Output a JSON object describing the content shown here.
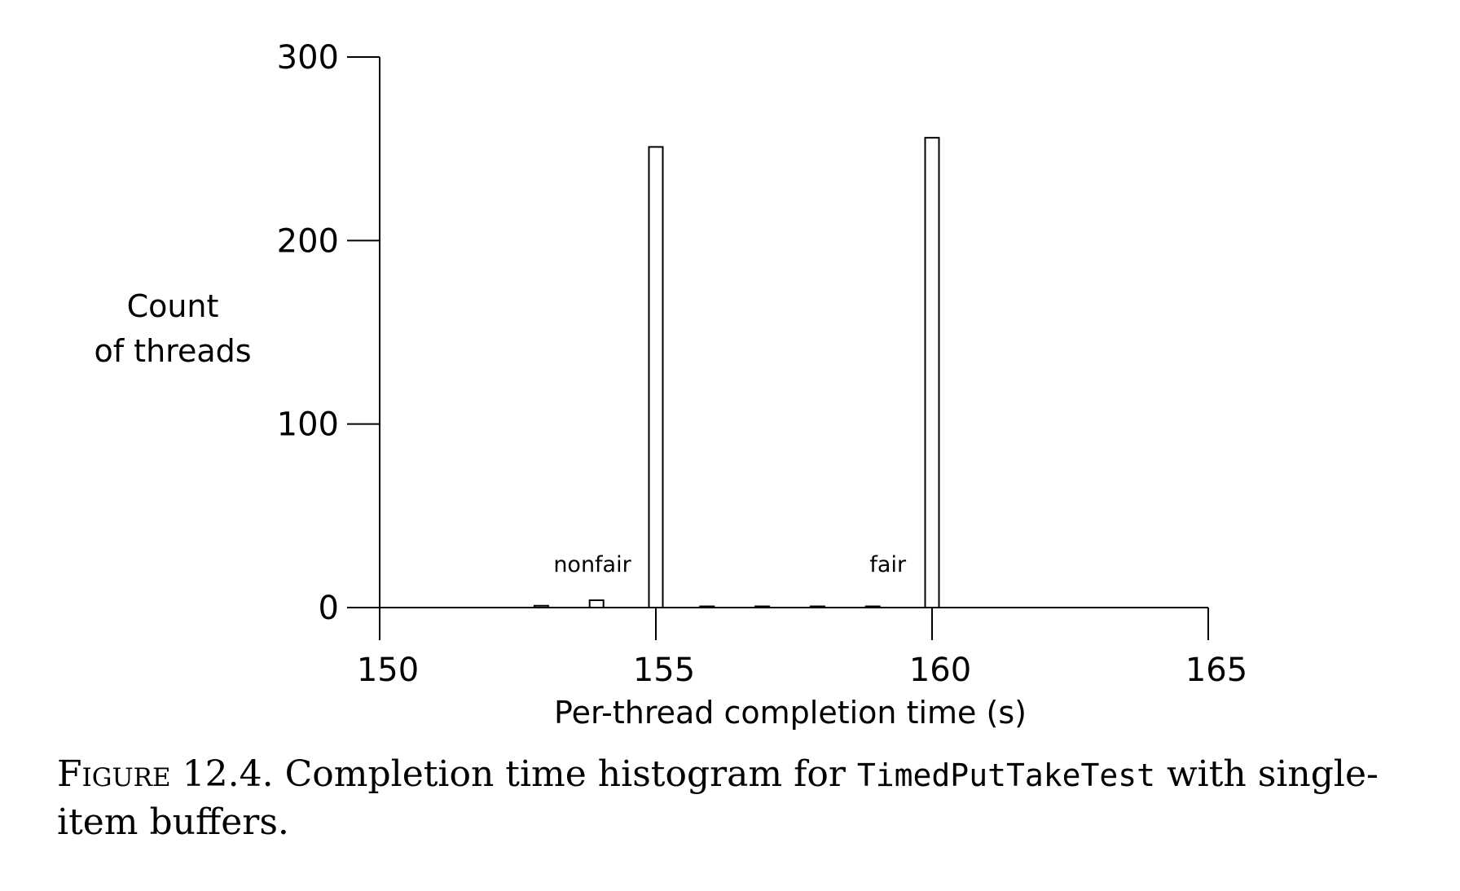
{
  "chart_data": {
    "type": "bar",
    "xlabel": "Per-thread completion time (s)",
    "ylabel": [
      "Count",
      "of threads"
    ],
    "xlim": [
      150,
      165
    ],
    "ylim": [
      0,
      300
    ],
    "xticks": [
      "150",
      "155",
      "160",
      "165"
    ],
    "yticks": [
      "0",
      "100",
      "200",
      "300"
    ],
    "bars": [
      {
        "x": 153,
        "value": 1
      },
      {
        "x": 154,
        "value": 4
      },
      {
        "x": 155,
        "value": 251
      },
      {
        "x": 156,
        "value": 0
      },
      {
        "x": 157,
        "value": 0
      },
      {
        "x": 158,
        "value": 0
      },
      {
        "x": 159,
        "value": 0
      },
      {
        "x": 160,
        "value": 256
      }
    ],
    "annotations": [
      {
        "text": "nonfair",
        "x": 153.85,
        "y": 24
      },
      {
        "text": "fair",
        "x": 159.2,
        "y": 24
      }
    ],
    "grid": false
  },
  "caption": {
    "label": "Figure 12.4.",
    "text_before": "Completion time histogram for",
    "code": "TimedPutTakeTest",
    "text_after": "with single-item buffers."
  }
}
